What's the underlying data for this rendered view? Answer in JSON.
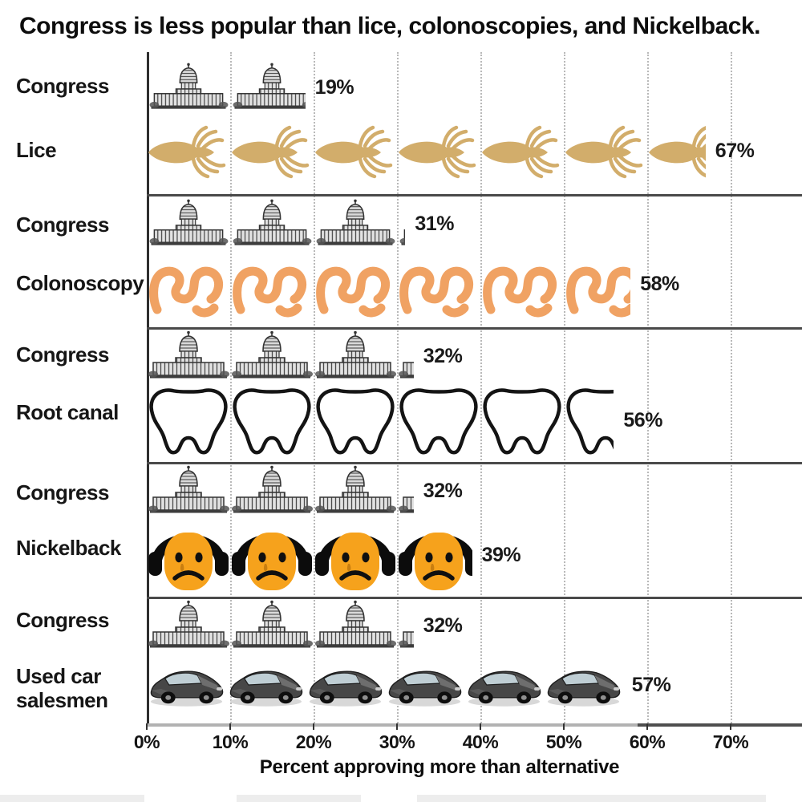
{
  "title": "Congress is less popular than lice, colonoscopies, and Nickelback.",
  "x_axis": {
    "tick_labels": [
      "0%",
      "10%",
      "20%",
      "30%",
      "40%",
      "50%",
      "60%",
      "70%"
    ],
    "title": "Percent approving more than alternative",
    "min": 0,
    "max": 70,
    "gridlines": "dotted-vertical"
  },
  "colors": {
    "lice": "#d2ad6b",
    "colonoscopy": "#f0a263",
    "nickelback_face": "#f6a21c",
    "headphones": "#0c0c0c",
    "capitol_ink": "#3a3a3a",
    "tooth_outline": "#141414",
    "car_body": "#474747",
    "text": "#111111"
  },
  "chart_data": {
    "type": "bar",
    "subtype": "pictogram",
    "xlabel": "Percent approving more than alternative",
    "xlim": [
      0,
      70
    ],
    "unit_percent_per_icon": 10,
    "rows": [
      {
        "label": "Congress",
        "value": 19,
        "value_label": "19%",
        "icon": "capitol-icon"
      },
      {
        "label": "Lice",
        "value": 67,
        "value_label": "67%",
        "icon": "louse-icon"
      },
      {
        "label": "Congress",
        "value": 31,
        "value_label": "31%",
        "icon": "capitol-icon"
      },
      {
        "label": "Colonoscopy",
        "value": 58,
        "value_label": "58%",
        "icon": "colonoscopy-icon"
      },
      {
        "label": "Congress",
        "value": 32,
        "value_label": "32%",
        "icon": "capitol-icon"
      },
      {
        "label": "Root canal",
        "value": 56,
        "value_label": "56%",
        "icon": "tooth-icon"
      },
      {
        "label": "Congress",
        "value": 32,
        "value_label": "32%",
        "icon": "capitol-icon"
      },
      {
        "label": "Nickelback",
        "value": 39,
        "value_label": "39%",
        "icon": "nickelback-face-icon"
      },
      {
        "label": "Congress",
        "value": 32,
        "value_label": "32%",
        "icon": "capitol-icon"
      },
      {
        "label": "Used car salesmen",
        "value": 57,
        "value_label": "57%",
        "icon": "car-icon"
      }
    ],
    "pairs": [
      {
        "congress": 19,
        "alternative": "Lice",
        "alternative_value": 67
      },
      {
        "congress": 31,
        "alternative": "Colonoscopy",
        "alternative_value": 58
      },
      {
        "congress": 32,
        "alternative": "Root canal",
        "alternative_value": 56
      },
      {
        "congress": 32,
        "alternative": "Nickelback",
        "alternative_value": 39
      },
      {
        "congress": 32,
        "alternative": "Used car salesmen",
        "alternative_value": 57
      }
    ]
  }
}
